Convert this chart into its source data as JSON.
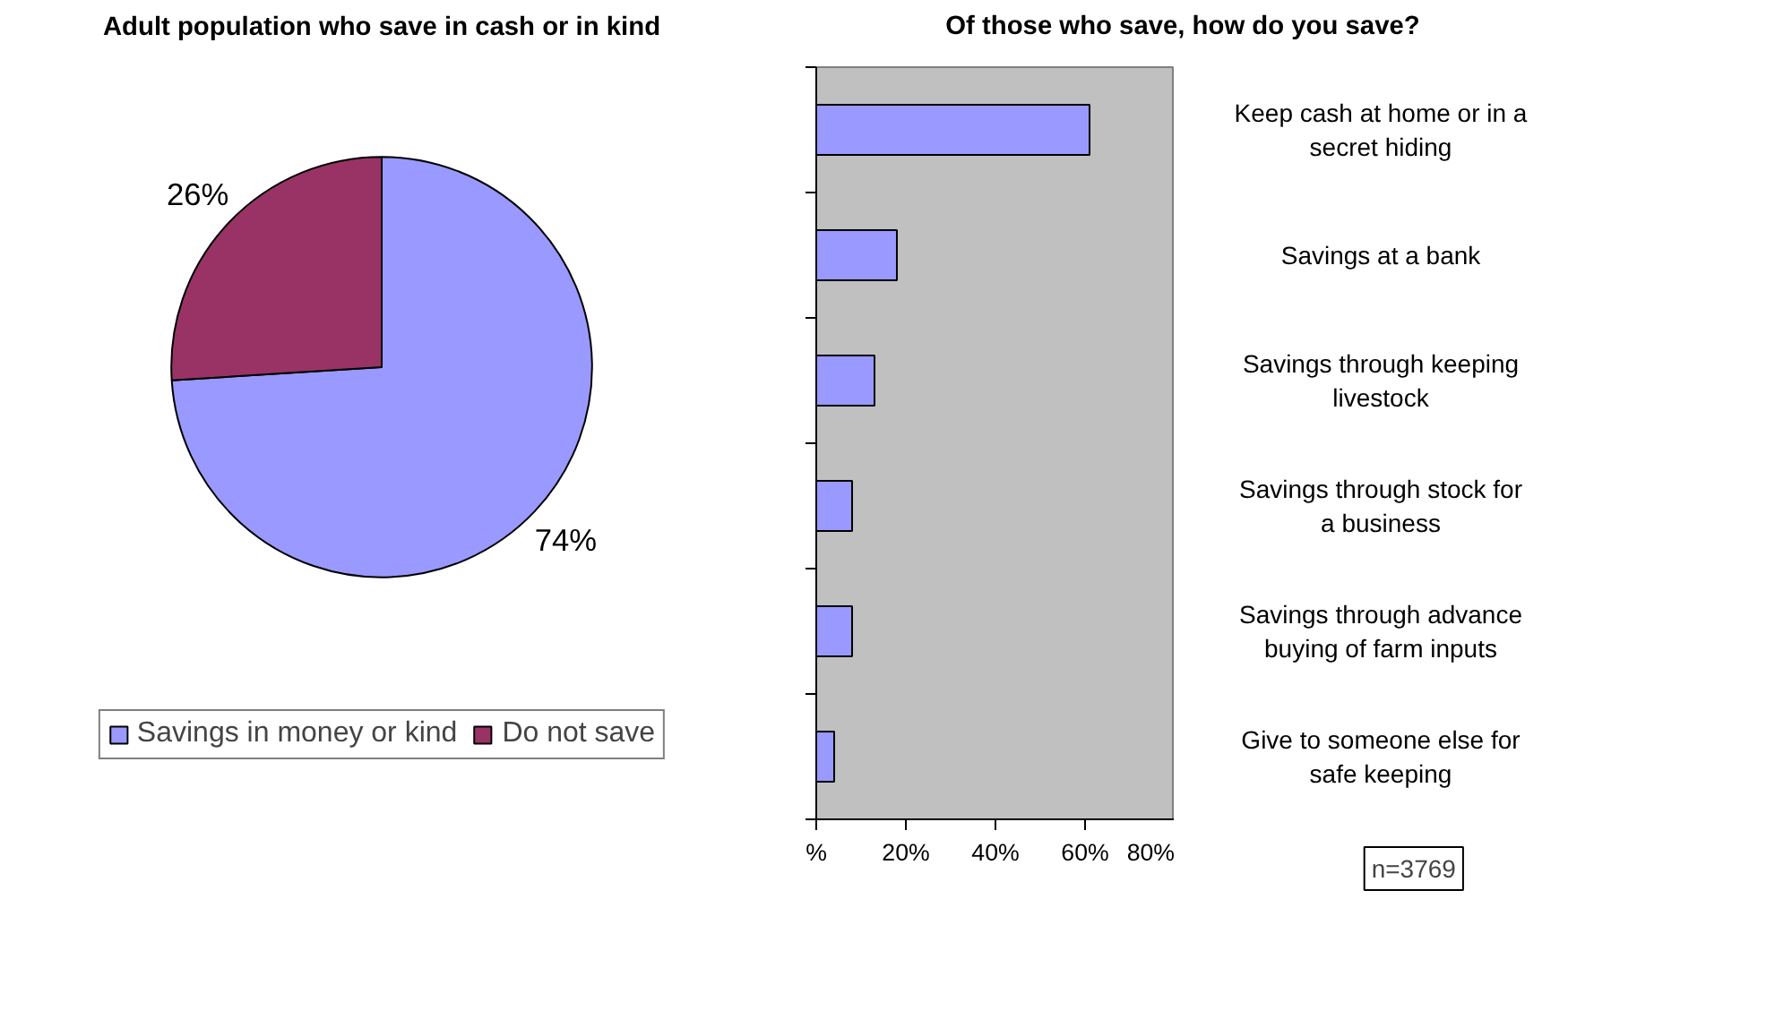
{
  "chart_data": [
    {
      "type": "pie",
      "title": "Adult population who save in cash or in kind",
      "categories": [
        "Savings in money or kind",
        "Do not save"
      ],
      "values": [
        74,
        26
      ],
      "colors": [
        "#9999ff",
        "#993366"
      ],
      "value_labels": [
        "74%",
        "26%"
      ],
      "legend": "bottom"
    },
    {
      "type": "bar",
      "orientation": "horizontal",
      "title": "Of those who save, how do you save?",
      "categories": [
        "Keep cash at home or in a secret hiding",
        "Savings at a bank",
        "Savings through keeping livestock",
        "Savings through stock for a business",
        "Savings through advance buying of farm inputs",
        "Give to someone else for safe keeping"
      ],
      "values": [
        61,
        18,
        13,
        8,
        8,
        4
      ],
      "color": "#9999ff",
      "xlim": [
        0,
        80
      ],
      "xticks": [
        {
          "value": 0,
          "label": "%"
        },
        {
          "value": 20,
          "label": "20%"
        },
        {
          "value": 40,
          "label": "40%"
        },
        {
          "value": 60,
          "label": "60%"
        },
        {
          "value": 80,
          "label": "80%"
        }
      ],
      "grid": false,
      "annotations": [
        "n=3769"
      ]
    }
  ]
}
